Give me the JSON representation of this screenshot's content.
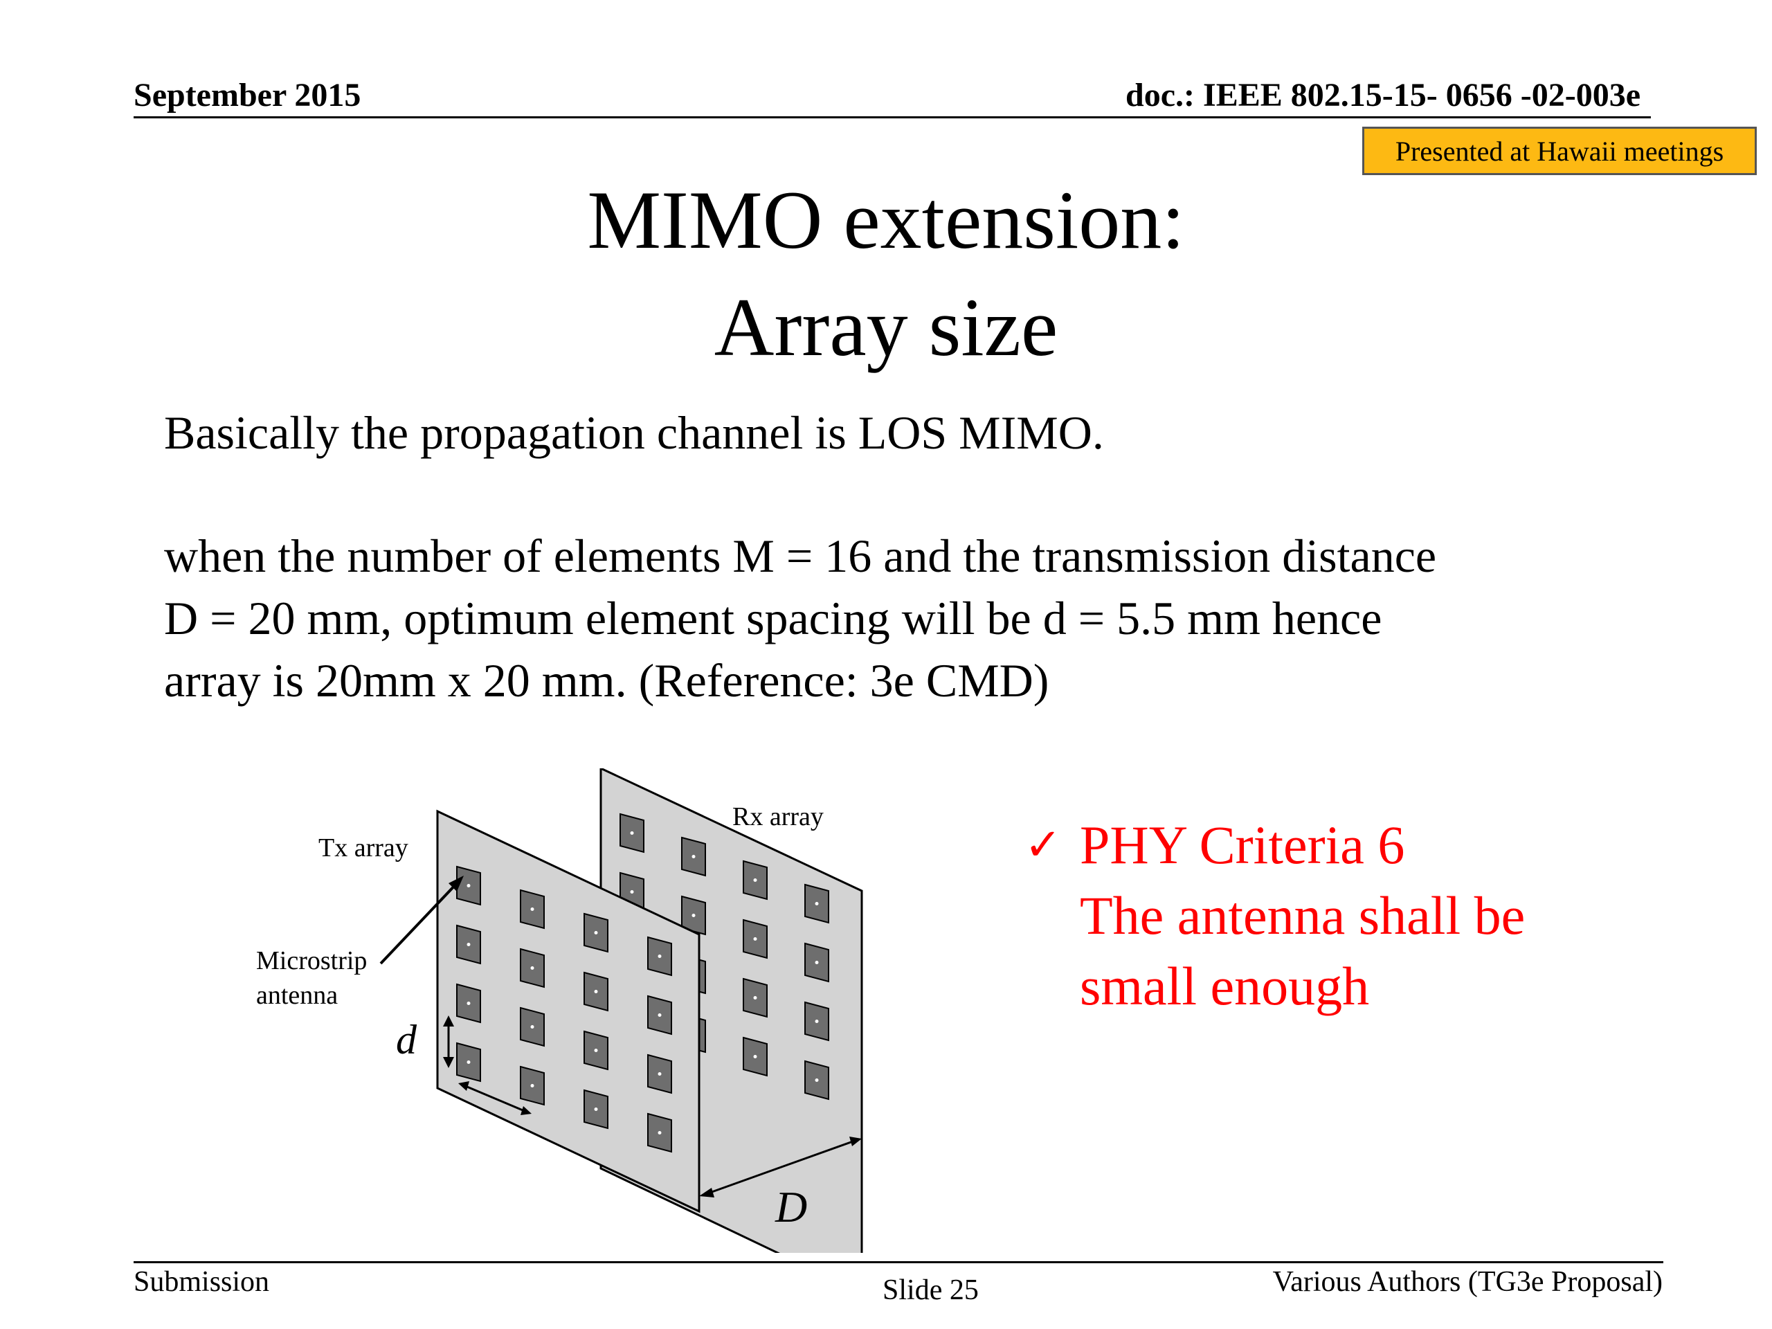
{
  "header": {
    "date": "September 2015",
    "doc": "doc.: IEEE 802.15-15- 0656 -02-003e"
  },
  "badge": "Presented at Hawaii meetings",
  "title": {
    "line1": "MIMO extension:",
    "line2": "Array size"
  },
  "body": {
    "p1": "Basically the propagation channel is LOS MIMO.",
    "p2": "when the number of elements  M = 16 and the transmission distance",
    "p3": "D = 20 mm, optimum element spacing will be d = 5.5 mm hence",
    "p4": "array is 20mm x 20 mm.   (Reference: 3e CMD)"
  },
  "criteria": {
    "check_icon": "checkmark-icon",
    "line1": "PHY Criteria 6",
    "line2": "The antenna shall be",
    "line3": "small enough",
    "color": "#FF0000"
  },
  "diagram": {
    "tx_label": "Tx array",
    "rx_label": "Rx array",
    "antenna_label_1": "Microstrip",
    "antenna_label_2": "antenna",
    "spacing_label": "d",
    "distance_label": "D",
    "panel_color": "#D3D3D3",
    "element_color": "#6E6E6E"
  },
  "footer": {
    "left": "Submission",
    "center": "Slide 25",
    "right": "Various Authors (TG3e Proposal)"
  }
}
